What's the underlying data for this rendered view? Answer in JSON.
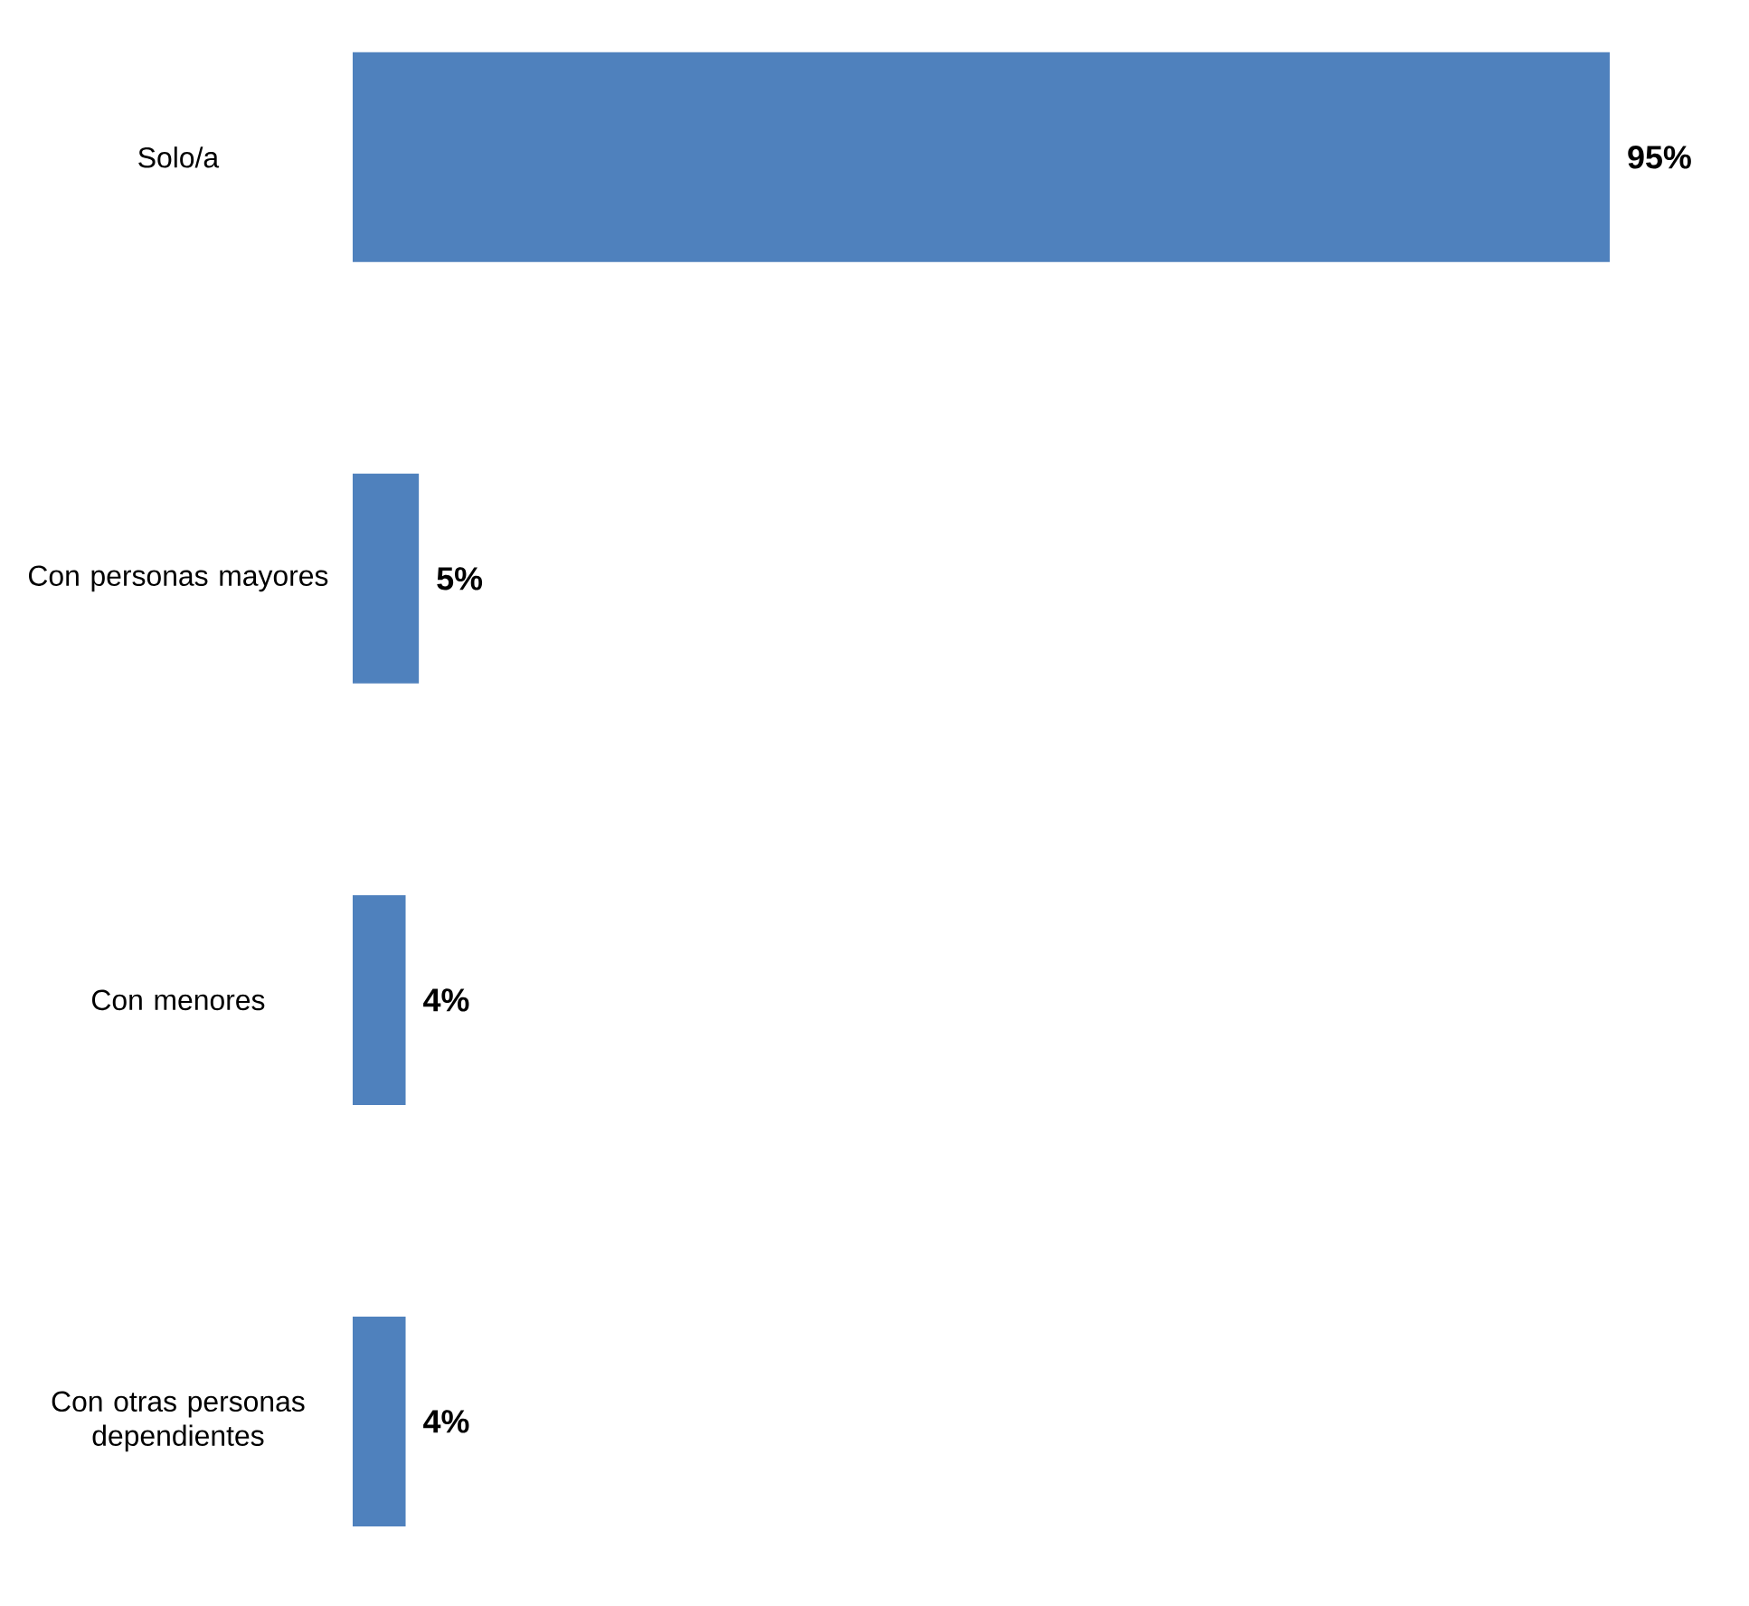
{
  "chart_data": {
    "type": "bar",
    "orientation": "horizontal",
    "categories": [
      "Solo/a",
      "Con personas mayores",
      "Con menores",
      "Con otras personas dependientes"
    ],
    "values": [
      95,
      5,
      4,
      4
    ],
    "value_labels": [
      "95%",
      "5%",
      "4%",
      "4%"
    ],
    "color": "#4f81bd"
  }
}
